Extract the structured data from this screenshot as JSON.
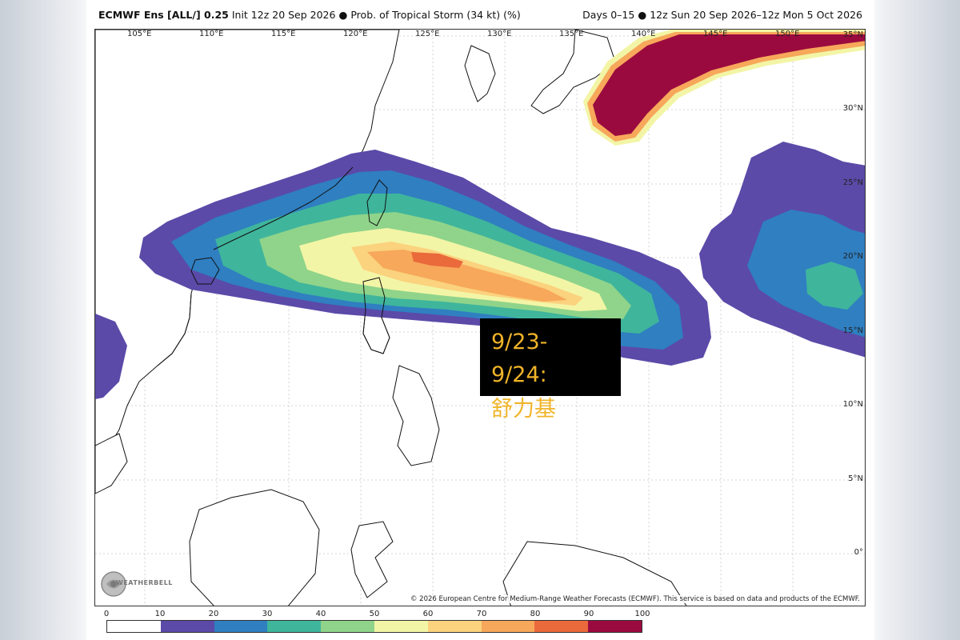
{
  "header": {
    "model": "ECMWF Ens [ALL/] 0.25",
    "init": "Init 12z 20 Sep 2026",
    "bullet": "●",
    "product": "Prob. of Tropical Storm (34 kt) (%)",
    "days": "Days 0–15",
    "valid": "12z Sun 20 Sep 2026–12z Mon 5 Oct 2026"
  },
  "map": {
    "lon_labels": [
      "105°E",
      "110°E",
      "115°E",
      "120°E",
      "125°E",
      "130°E",
      "135°E",
      "140°E",
      "145°E",
      "150°E"
    ],
    "lat_labels": [
      "35°N",
      "30°N",
      "25°N",
      "20°N",
      "15°N",
      "10°N",
      "5°N",
      "0°"
    ],
    "copyright": "© 2026 European Centre for Medium-Range Weather Forecasts (ECMWF). This service is based on data and products of the ECMWF.",
    "logo_text": "WEATHERBELL"
  },
  "annotation": {
    "line1": "9/23-",
    "line2": "9/24:",
    "line3": "舒力基"
  },
  "colorbar": {
    "ticks": [
      "0",
      "10",
      "20",
      "30",
      "40",
      "50",
      "60",
      "70",
      "80",
      "90",
      "100"
    ],
    "colors": [
      "#ffffff",
      "#5b4aa8",
      "#2f7fc1",
      "#3fb59c",
      "#8fd48a",
      "#f3f5a6",
      "#fbd27e",
      "#f7a85a",
      "#ea6a3c",
      "#9b0a3f"
    ]
  }
}
